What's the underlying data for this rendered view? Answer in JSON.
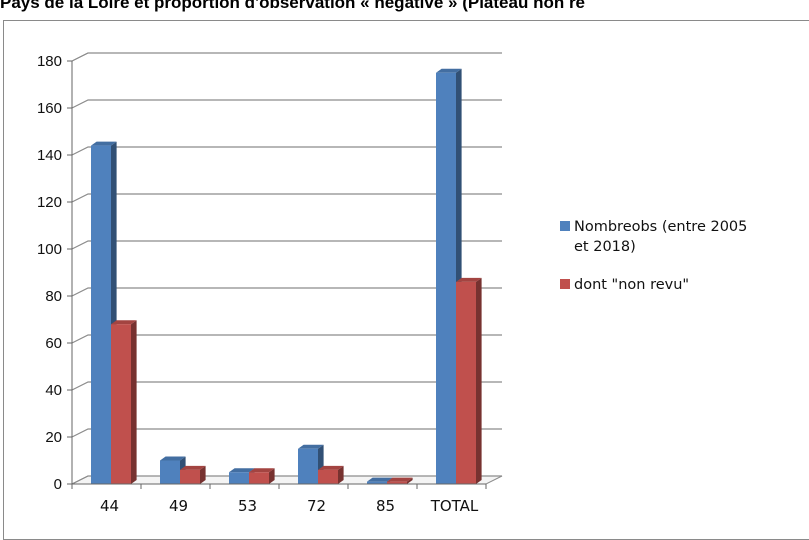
{
  "title_text": "Pays de la Loire et proportion d'observation « négative » (Plateau non re",
  "chart_data": {
    "type": "bar",
    "categories": [
      "44",
      "49",
      "53",
      "72",
      "85",
      "TOTAL"
    ],
    "series": [
      {
        "name": "Nombre obs (entre 2005 et 2018)",
        "values": [
          144,
          10,
          5,
          15,
          1,
          175
        ],
        "color": "#4F81BD"
      },
      {
        "name": "dont \"non revu\"",
        "values": [
          68,
          6,
          5,
          6,
          1,
          86
        ],
        "color": "#C0504D"
      }
    ],
    "legend_lines": [
      [
        "Nombreobs (entre 2005",
        "et 2018)"
      ],
      [
        "dont \"non revu\""
      ]
    ],
    "ylim": [
      0,
      180
    ],
    "yticks": [
      0,
      20,
      40,
      60,
      80,
      100,
      120,
      140,
      160,
      180
    ],
    "grid": true,
    "legend_position": "right"
  }
}
